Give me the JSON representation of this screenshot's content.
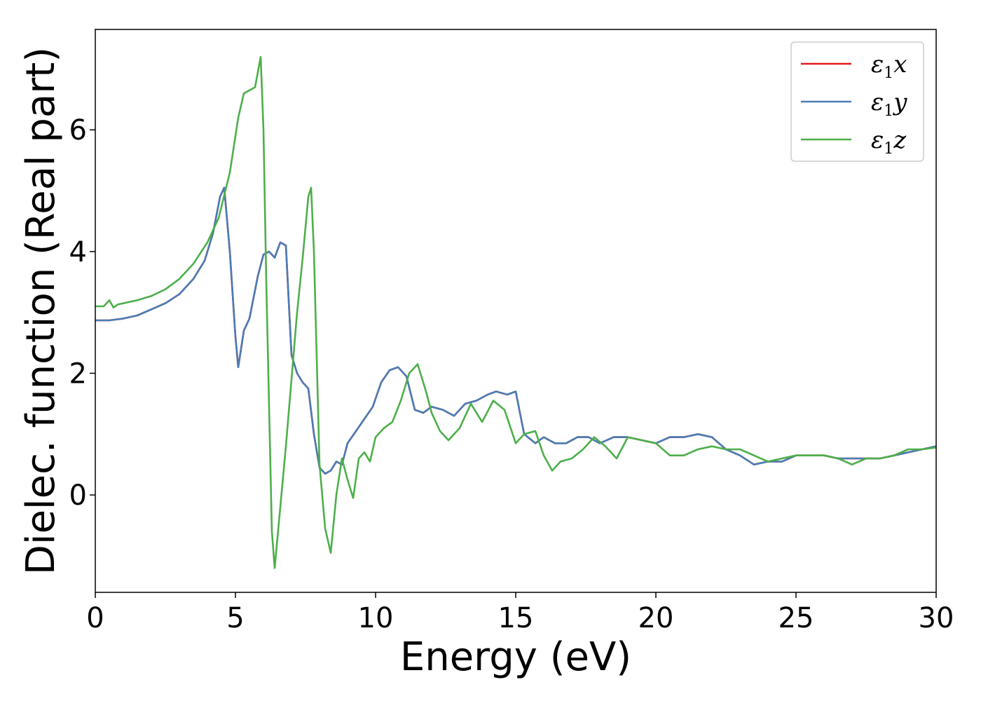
{
  "chart_data": {
    "type": "line",
    "title": "",
    "xlabel": "Energy (eV)",
    "ylabel": "Dielec. function (Real part)",
    "xlim": [
      0,
      30
    ],
    "ylim": [
      -1.6,
      7.65
    ],
    "x_ticks": [
      0,
      5,
      10,
      15,
      20,
      25,
      30
    ],
    "x_tick_labels": [
      "0",
      "5",
      "10",
      "15",
      "20",
      "25",
      "30"
    ],
    "y_ticks": [
      0,
      2,
      4,
      6
    ],
    "y_tick_labels": [
      "0",
      "2",
      "4",
      "6"
    ],
    "grid": false,
    "legend_position": "top-right",
    "series": [
      {
        "name": "ε₁x",
        "legend_base": "ε",
        "legend_sub": "1",
        "legend_suffix": "x",
        "color": "#e41a1c",
        "x": [
          0,
          0.5,
          1.0,
          1.5,
          2.0,
          2.5,
          3.0,
          3.5,
          3.9,
          4.2,
          4.45,
          4.6,
          4.8,
          5.0,
          5.1,
          5.3,
          5.5,
          5.8,
          6.0,
          6.2,
          6.4,
          6.6,
          6.8,
          7.0,
          7.2,
          7.4,
          7.6,
          7.8,
          8.0,
          8.2,
          8.4,
          8.6,
          8.8,
          9.0,
          9.3,
          9.6,
          9.9,
          10.2,
          10.5,
          10.8,
          11.1,
          11.4,
          11.7,
          12.0,
          12.4,
          12.8,
          13.2,
          13.6,
          14.0,
          14.3,
          14.7,
          15.0,
          15.3,
          15.7,
          16.0,
          16.4,
          16.8,
          17.2,
          17.6,
          18.0,
          18.5,
          19.0,
          19.5,
          20.0,
          20.5,
          21.0,
          21.5,
          22.0,
          22.5,
          23.0,
          23.5,
          24.0,
          24.5,
          25.0,
          25.5,
          26.0,
          26.5,
          27.0,
          27.5,
          28.0,
          28.5,
          29.0,
          29.5,
          30.0
        ],
        "y": [
          2.87,
          2.87,
          2.9,
          2.95,
          3.05,
          3.15,
          3.3,
          3.55,
          3.85,
          4.3,
          4.9,
          5.05,
          4.0,
          2.6,
          2.1,
          2.7,
          2.9,
          3.6,
          3.95,
          4.0,
          3.9,
          4.15,
          4.1,
          2.3,
          2.0,
          1.85,
          1.75,
          1.0,
          0.45,
          0.35,
          0.4,
          0.55,
          0.5,
          0.85,
          1.05,
          1.25,
          1.45,
          1.85,
          2.05,
          2.1,
          1.95,
          1.4,
          1.35,
          1.45,
          1.4,
          1.3,
          1.5,
          1.55,
          1.65,
          1.7,
          1.65,
          1.7,
          1.0,
          0.85,
          0.95,
          0.85,
          0.85,
          0.95,
          0.95,
          0.85,
          0.95,
          0.95,
          0.9,
          0.85,
          0.95,
          0.95,
          1.0,
          0.95,
          0.75,
          0.65,
          0.5,
          0.55,
          0.55,
          0.65,
          0.65,
          0.65,
          0.6,
          0.6,
          0.6,
          0.6,
          0.65,
          0.7,
          0.75,
          0.8
        ]
      },
      {
        "name": "ε₁y",
        "legend_base": "ε",
        "legend_sub": "1",
        "legend_suffix": "y",
        "color": "#4a7db5",
        "x": [
          0,
          0.5,
          1.0,
          1.5,
          2.0,
          2.5,
          3.0,
          3.5,
          3.9,
          4.2,
          4.45,
          4.6,
          4.8,
          5.0,
          5.1,
          5.3,
          5.5,
          5.8,
          6.0,
          6.2,
          6.4,
          6.6,
          6.8,
          7.0,
          7.2,
          7.4,
          7.6,
          7.8,
          8.0,
          8.2,
          8.4,
          8.6,
          8.8,
          9.0,
          9.3,
          9.6,
          9.9,
          10.2,
          10.5,
          10.8,
          11.1,
          11.4,
          11.7,
          12.0,
          12.4,
          12.8,
          13.2,
          13.6,
          14.0,
          14.3,
          14.7,
          15.0,
          15.3,
          15.7,
          16.0,
          16.4,
          16.8,
          17.2,
          17.6,
          18.0,
          18.5,
          19.0,
          19.5,
          20.0,
          20.5,
          21.0,
          21.5,
          22.0,
          22.5,
          23.0,
          23.5,
          24.0,
          24.5,
          25.0,
          25.5,
          26.0,
          26.5,
          27.0,
          27.5,
          28.0,
          28.5,
          29.0,
          29.5,
          30.0
        ],
        "y": [
          2.87,
          2.87,
          2.9,
          2.95,
          3.05,
          3.15,
          3.3,
          3.55,
          3.85,
          4.3,
          4.9,
          5.05,
          4.0,
          2.6,
          2.1,
          2.7,
          2.9,
          3.6,
          3.95,
          4.0,
          3.9,
          4.15,
          4.1,
          2.3,
          2.0,
          1.85,
          1.75,
          1.0,
          0.45,
          0.35,
          0.4,
          0.55,
          0.5,
          0.85,
          1.05,
          1.25,
          1.45,
          1.85,
          2.05,
          2.1,
          1.95,
          1.4,
          1.35,
          1.45,
          1.4,
          1.3,
          1.5,
          1.55,
          1.65,
          1.7,
          1.65,
          1.7,
          1.0,
          0.85,
          0.95,
          0.85,
          0.85,
          0.95,
          0.95,
          0.85,
          0.95,
          0.95,
          0.9,
          0.85,
          0.95,
          0.95,
          1.0,
          0.95,
          0.75,
          0.65,
          0.5,
          0.55,
          0.55,
          0.65,
          0.65,
          0.65,
          0.6,
          0.6,
          0.6,
          0.6,
          0.65,
          0.7,
          0.75,
          0.8
        ]
      },
      {
        "name": "ε₁z",
        "legend_base": "ε",
        "legend_sub": "1",
        "legend_suffix": "z",
        "color": "#4daf4a",
        "x": [
          0,
          0.3,
          0.5,
          0.65,
          0.8,
          1.0,
          1.5,
          2.0,
          2.5,
          3.0,
          3.5,
          4.0,
          4.4,
          4.8,
          5.1,
          5.3,
          5.5,
          5.7,
          5.9,
          6.0,
          6.1,
          6.3,
          6.4,
          6.6,
          6.8,
          7.0,
          7.2,
          7.4,
          7.6,
          7.7,
          7.8,
          8.0,
          8.2,
          8.4,
          8.6,
          8.8,
          9.0,
          9.2,
          9.4,
          9.6,
          9.8,
          10.0,
          10.3,
          10.6,
          10.9,
          11.2,
          11.5,
          11.8,
          12.0,
          12.3,
          12.6,
          13.0,
          13.4,
          13.8,
          14.2,
          14.6,
          15.0,
          15.3,
          15.7,
          16.0,
          16.3,
          16.6,
          17.0,
          17.4,
          17.8,
          18.2,
          18.6,
          19.0,
          19.5,
          20.0,
          20.5,
          21.0,
          21.5,
          22.0,
          22.5,
          23.0,
          23.5,
          24.0,
          24.5,
          25.0,
          25.5,
          26.0,
          26.5,
          27.0,
          27.5,
          28.0,
          28.5,
          29.0,
          29.5,
          30.0
        ],
        "y": [
          3.1,
          3.1,
          3.2,
          3.08,
          3.13,
          3.15,
          3.2,
          3.27,
          3.38,
          3.55,
          3.8,
          4.15,
          4.55,
          5.3,
          6.2,
          6.6,
          6.65,
          6.7,
          7.2,
          6.0,
          3.5,
          -0.6,
          -1.2,
          -0.2,
          0.8,
          1.9,
          3.0,
          3.9,
          4.9,
          5.05,
          4.0,
          0.5,
          -0.55,
          -0.95,
          0.0,
          0.6,
          0.25,
          -0.05,
          0.6,
          0.7,
          0.55,
          0.95,
          1.1,
          1.2,
          1.55,
          2.0,
          2.15,
          1.7,
          1.35,
          1.05,
          0.9,
          1.1,
          1.5,
          1.2,
          1.55,
          1.4,
          0.85,
          1.0,
          1.05,
          0.65,
          0.4,
          0.55,
          0.6,
          0.75,
          0.95,
          0.8,
          0.6,
          0.95,
          0.9,
          0.85,
          0.65,
          0.65,
          0.75,
          0.8,
          0.75,
          0.75,
          0.65,
          0.55,
          0.6,
          0.65,
          0.65,
          0.65,
          0.6,
          0.5,
          0.6,
          0.6,
          0.65,
          0.75,
          0.75,
          0.78
        ]
      }
    ]
  }
}
